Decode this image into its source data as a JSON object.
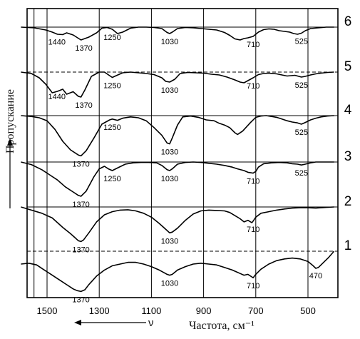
{
  "chart_data": {
    "type": "line",
    "title": "",
    "xlabel": "Частота, см⁻¹",
    "ylabel": "Пропускание",
    "xdirection_label": "ν",
    "xlim": [
      1600,
      400
    ],
    "x_ticks": [
      1500,
      1300,
      1100,
      900,
      700,
      500
    ],
    "grid": true,
    "legend": "none",
    "series": [
      {
        "name": "6",
        "x": [
          1600,
          1550,
          1505,
          1480,
          1460,
          1440,
          1425,
          1400,
          1370,
          1340,
          1310,
          1290,
          1270,
          1250,
          1230,
          1210,
          1180,
          1150,
          1120,
          1090,
          1060,
          1040,
          1030,
          1020,
          1000,
          970,
          940,
          910,
          880,
          850,
          820,
          800,
          780,
          760,
          745,
          730,
          710,
          690,
          670,
          650,
          630,
          610,
          590,
          570,
          555,
          540,
          525,
          510,
          490,
          460,
          430,
          400
        ],
        "y": [
          1.0,
          0.98,
          0.92,
          0.86,
          0.8,
          0.79,
          0.84,
          0.78,
          0.64,
          0.72,
          0.84,
          0.97,
          0.99,
          0.94,
          0.82,
          0.86,
          0.97,
          1.0,
          1.0,
          0.99,
          0.96,
          0.85,
          0.82,
          0.86,
          0.96,
          0.99,
          0.98,
          0.96,
          0.94,
          0.92,
          0.85,
          0.77,
          0.67,
          0.64,
          0.68,
          0.7,
          0.74,
          0.86,
          0.93,
          0.95,
          0.94,
          0.9,
          0.88,
          0.86,
          0.82,
          0.8,
          0.83,
          0.9,
          0.96,
          0.98,
          1.0,
          1.0
        ]
      },
      {
        "name": "5",
        "x": [
          1600,
          1560,
          1530,
          1505,
          1480,
          1460,
          1440,
          1425,
          1400,
          1380,
          1370,
          1355,
          1330,
          1300,
          1280,
          1260,
          1250,
          1235,
          1210,
          1180,
          1150,
          1120,
          1090,
          1060,
          1045,
          1030,
          1010,
          990,
          960,
          930,
          900,
          870,
          840,
          810,
          780,
          760,
          745,
          730,
          710,
          690,
          670,
          650,
          620,
          600,
          580,
          565,
          550,
          535,
          525,
          510,
          490,
          470,
          450,
          425,
          400
        ],
        "y": [
          1.0,
          0.96,
          0.84,
          0.66,
          0.42,
          0.46,
          0.52,
          0.38,
          0.45,
          0.32,
          0.3,
          0.5,
          0.88,
          1.0,
          1.0,
          0.9,
          0.85,
          0.9,
          0.98,
          1.0,
          0.98,
          0.96,
          0.93,
          0.84,
          0.74,
          0.72,
          0.8,
          0.96,
          0.99,
          0.98,
          0.97,
          0.94,
          0.92,
          0.86,
          0.78,
          0.72,
          0.7,
          0.76,
          0.84,
          0.93,
          0.96,
          0.97,
          0.95,
          0.92,
          0.89,
          0.9,
          0.91,
          0.88,
          0.86,
          0.88,
          0.92,
          0.95,
          0.97,
          0.99,
          1.0
        ]
      },
      {
        "name": "4",
        "x": [
          1600,
          1560,
          1530,
          1500,
          1470,
          1440,
          1410,
          1380,
          1370,
          1350,
          1320,
          1290,
          1260,
          1250,
          1230,
          1210,
          1180,
          1150,
          1120,
          1090,
          1060,
          1040,
          1030,
          1020,
          1000,
          980,
          950,
          920,
          890,
          860,
          840,
          820,
          800,
          780,
          770,
          750,
          720,
          700,
          680,
          660,
          640,
          620,
          600,
          580,
          560,
          540,
          525,
          510,
          490,
          470,
          450,
          425,
          400
        ],
        "y": [
          1.0,
          0.98,
          0.95,
          0.88,
          0.68,
          0.4,
          0.2,
          0.08,
          0.06,
          0.18,
          0.48,
          0.8,
          0.9,
          0.92,
          0.89,
          0.94,
          0.97,
          0.95,
          0.88,
          0.72,
          0.54,
          0.36,
          0.34,
          0.48,
          0.78,
          0.97,
          0.99,
          0.96,
          0.9,
          0.88,
          0.82,
          0.78,
          0.72,
          0.6,
          0.56,
          0.64,
          0.84,
          0.96,
          0.99,
          1.0,
          0.98,
          0.96,
          0.92,
          0.88,
          0.85,
          0.83,
          0.8,
          0.84,
          0.9,
          0.94,
          0.97,
          0.99,
          1.0
        ]
      },
      {
        "name": "3",
        "x": [
          1600,
          1560,
          1520,
          1490,
          1460,
          1430,
          1400,
          1380,
          1370,
          1350,
          1320,
          1300,
          1280,
          1265,
          1250,
          1230,
          1200,
          1170,
          1140,
          1110,
          1080,
          1060,
          1040,
          1030,
          1020,
          1000,
          970,
          940,
          910,
          880,
          850,
          820,
          790,
          770,
          745,
          730,
          710,
          700,
          690,
          670,
          640,
          610,
          580,
          560,
          540,
          525,
          510,
          490,
          470,
          450,
          430,
          400
        ],
        "y": [
          1.0,
          0.94,
          0.82,
          0.7,
          0.58,
          0.42,
          0.3,
          0.22,
          0.2,
          0.32,
          0.66,
          0.84,
          0.9,
          0.84,
          0.8,
          0.86,
          0.95,
          0.98,
          0.99,
          0.99,
          0.98,
          0.92,
          0.82,
          0.8,
          0.84,
          0.95,
          0.99,
          1.0,
          0.99,
          0.97,
          0.95,
          0.92,
          0.88,
          0.84,
          0.8,
          0.76,
          0.74,
          0.78,
          0.88,
          0.96,
          0.98,
          0.99,
          0.98,
          0.96,
          0.95,
          0.93,
          0.95,
          0.98,
          1.0,
          1.0,
          1.0,
          1.0
        ]
      },
      {
        "name": "2",
        "x": [
          1600,
          1560,
          1520,
          1480,
          1440,
          1410,
          1390,
          1380,
          1370,
          1360,
          1340,
          1310,
          1280,
          1250,
          1220,
          1190,
          1160,
          1130,
          1100,
          1070,
          1040,
          1030,
          1020,
          1000,
          970,
          940,
          910,
          880,
          850,
          820,
          800,
          780,
          760,
          745,
          730,
          715,
          710,
          700,
          680,
          650,
          620,
          590,
          560,
          530,
          500,
          470,
          450,
          430,
          400
        ],
        "y": [
          1.0,
          0.92,
          0.84,
          0.72,
          0.48,
          0.32,
          0.2,
          0.14,
          0.12,
          0.16,
          0.34,
          0.62,
          0.8,
          0.88,
          0.92,
          0.93,
          0.9,
          0.84,
          0.74,
          0.58,
          0.4,
          0.34,
          0.36,
          0.46,
          0.66,
          0.82,
          0.9,
          0.92,
          0.91,
          0.9,
          0.86,
          0.78,
          0.7,
          0.62,
          0.66,
          0.6,
          0.64,
          0.74,
          0.84,
          0.88,
          0.92,
          0.95,
          0.97,
          0.98,
          0.98,
          0.97,
          0.98,
          0.99,
          1.0
        ]
      },
      {
        "name": "1",
        "x": [
          1600,
          1570,
          1540,
          1510,
          1480,
          1450,
          1420,
          1400,
          1385,
          1370,
          1355,
          1340,
          1310,
          1280,
          1250,
          1220,
          1190,
          1160,
          1130,
          1100,
          1070,
          1040,
          1030,
          1020,
          1000,
          970,
          940,
          910,
          880,
          850,
          820,
          790,
          760,
          745,
          730,
          715,
          710,
          700,
          680,
          650,
          620,
          590,
          560,
          530,
          500,
          480,
          470,
          460,
          440,
          420,
          400
        ],
        "y": [
          0.7,
          0.72,
          0.68,
          0.56,
          0.44,
          0.32,
          0.2,
          0.12,
          0.08,
          0.06,
          0.1,
          0.22,
          0.42,
          0.56,
          0.66,
          0.7,
          0.74,
          0.74,
          0.7,
          0.64,
          0.56,
          0.46,
          0.44,
          0.46,
          0.56,
          0.64,
          0.7,
          0.72,
          0.7,
          0.68,
          0.62,
          0.56,
          0.48,
          0.44,
          0.46,
          0.4,
          0.38,
          0.46,
          0.58,
          0.7,
          0.78,
          0.82,
          0.84,
          0.82,
          0.76,
          0.66,
          0.6,
          0.62,
          0.74,
          0.86,
          1.0
        ]
      }
    ],
    "peak_labels": [
      {
        "series": "6",
        "x": 1440,
        "text": "1440"
      },
      {
        "series": "6",
        "x": 1370,
        "text": "1370"
      },
      {
        "series": "6",
        "x": 1250,
        "text": "1250"
      },
      {
        "series": "6",
        "x": 1030,
        "text": "1030"
      },
      {
        "series": "6",
        "x": 710,
        "text": "710"
      },
      {
        "series": "6",
        "x": 525,
        "text": "525"
      },
      {
        "series": "5",
        "x": 1440,
        "text": "1440"
      },
      {
        "series": "5",
        "x": 1370,
        "text": "1370"
      },
      {
        "series": "5",
        "x": 1250,
        "text": "1250"
      },
      {
        "series": "5",
        "x": 1030,
        "text": "1030"
      },
      {
        "series": "5",
        "x": 710,
        "text": "710"
      },
      {
        "series": "5",
        "x": 525,
        "text": "525"
      },
      {
        "series": "4",
        "x": 1370,
        "text": "1370"
      },
      {
        "series": "4",
        "x": 1250,
        "text": "1250"
      },
      {
        "series": "4",
        "x": 1030,
        "text": "1030"
      },
      {
        "series": "4",
        "x": 525,
        "text": "525"
      },
      {
        "series": "3",
        "x": 1370,
        "text": "1370"
      },
      {
        "series": "3",
        "x": 1250,
        "text": "1250"
      },
      {
        "series": "3",
        "x": 1030,
        "text": "1030"
      },
      {
        "series": "3",
        "x": 710,
        "text": "710"
      },
      {
        "series": "3",
        "x": 525,
        "text": "525"
      },
      {
        "series": "2",
        "x": 1370,
        "text": "1370"
      },
      {
        "series": "2",
        "x": 1030,
        "text": "1030"
      },
      {
        "series": "2",
        "x": 710,
        "text": "710"
      },
      {
        "series": "1",
        "x": 1370,
        "text": "1370"
      },
      {
        "series": "1",
        "x": 1030,
        "text": "1030"
      },
      {
        "series": "1",
        "x": 710,
        "text": "710"
      },
      {
        "series": "1",
        "x": 470,
        "text": "470"
      }
    ]
  }
}
